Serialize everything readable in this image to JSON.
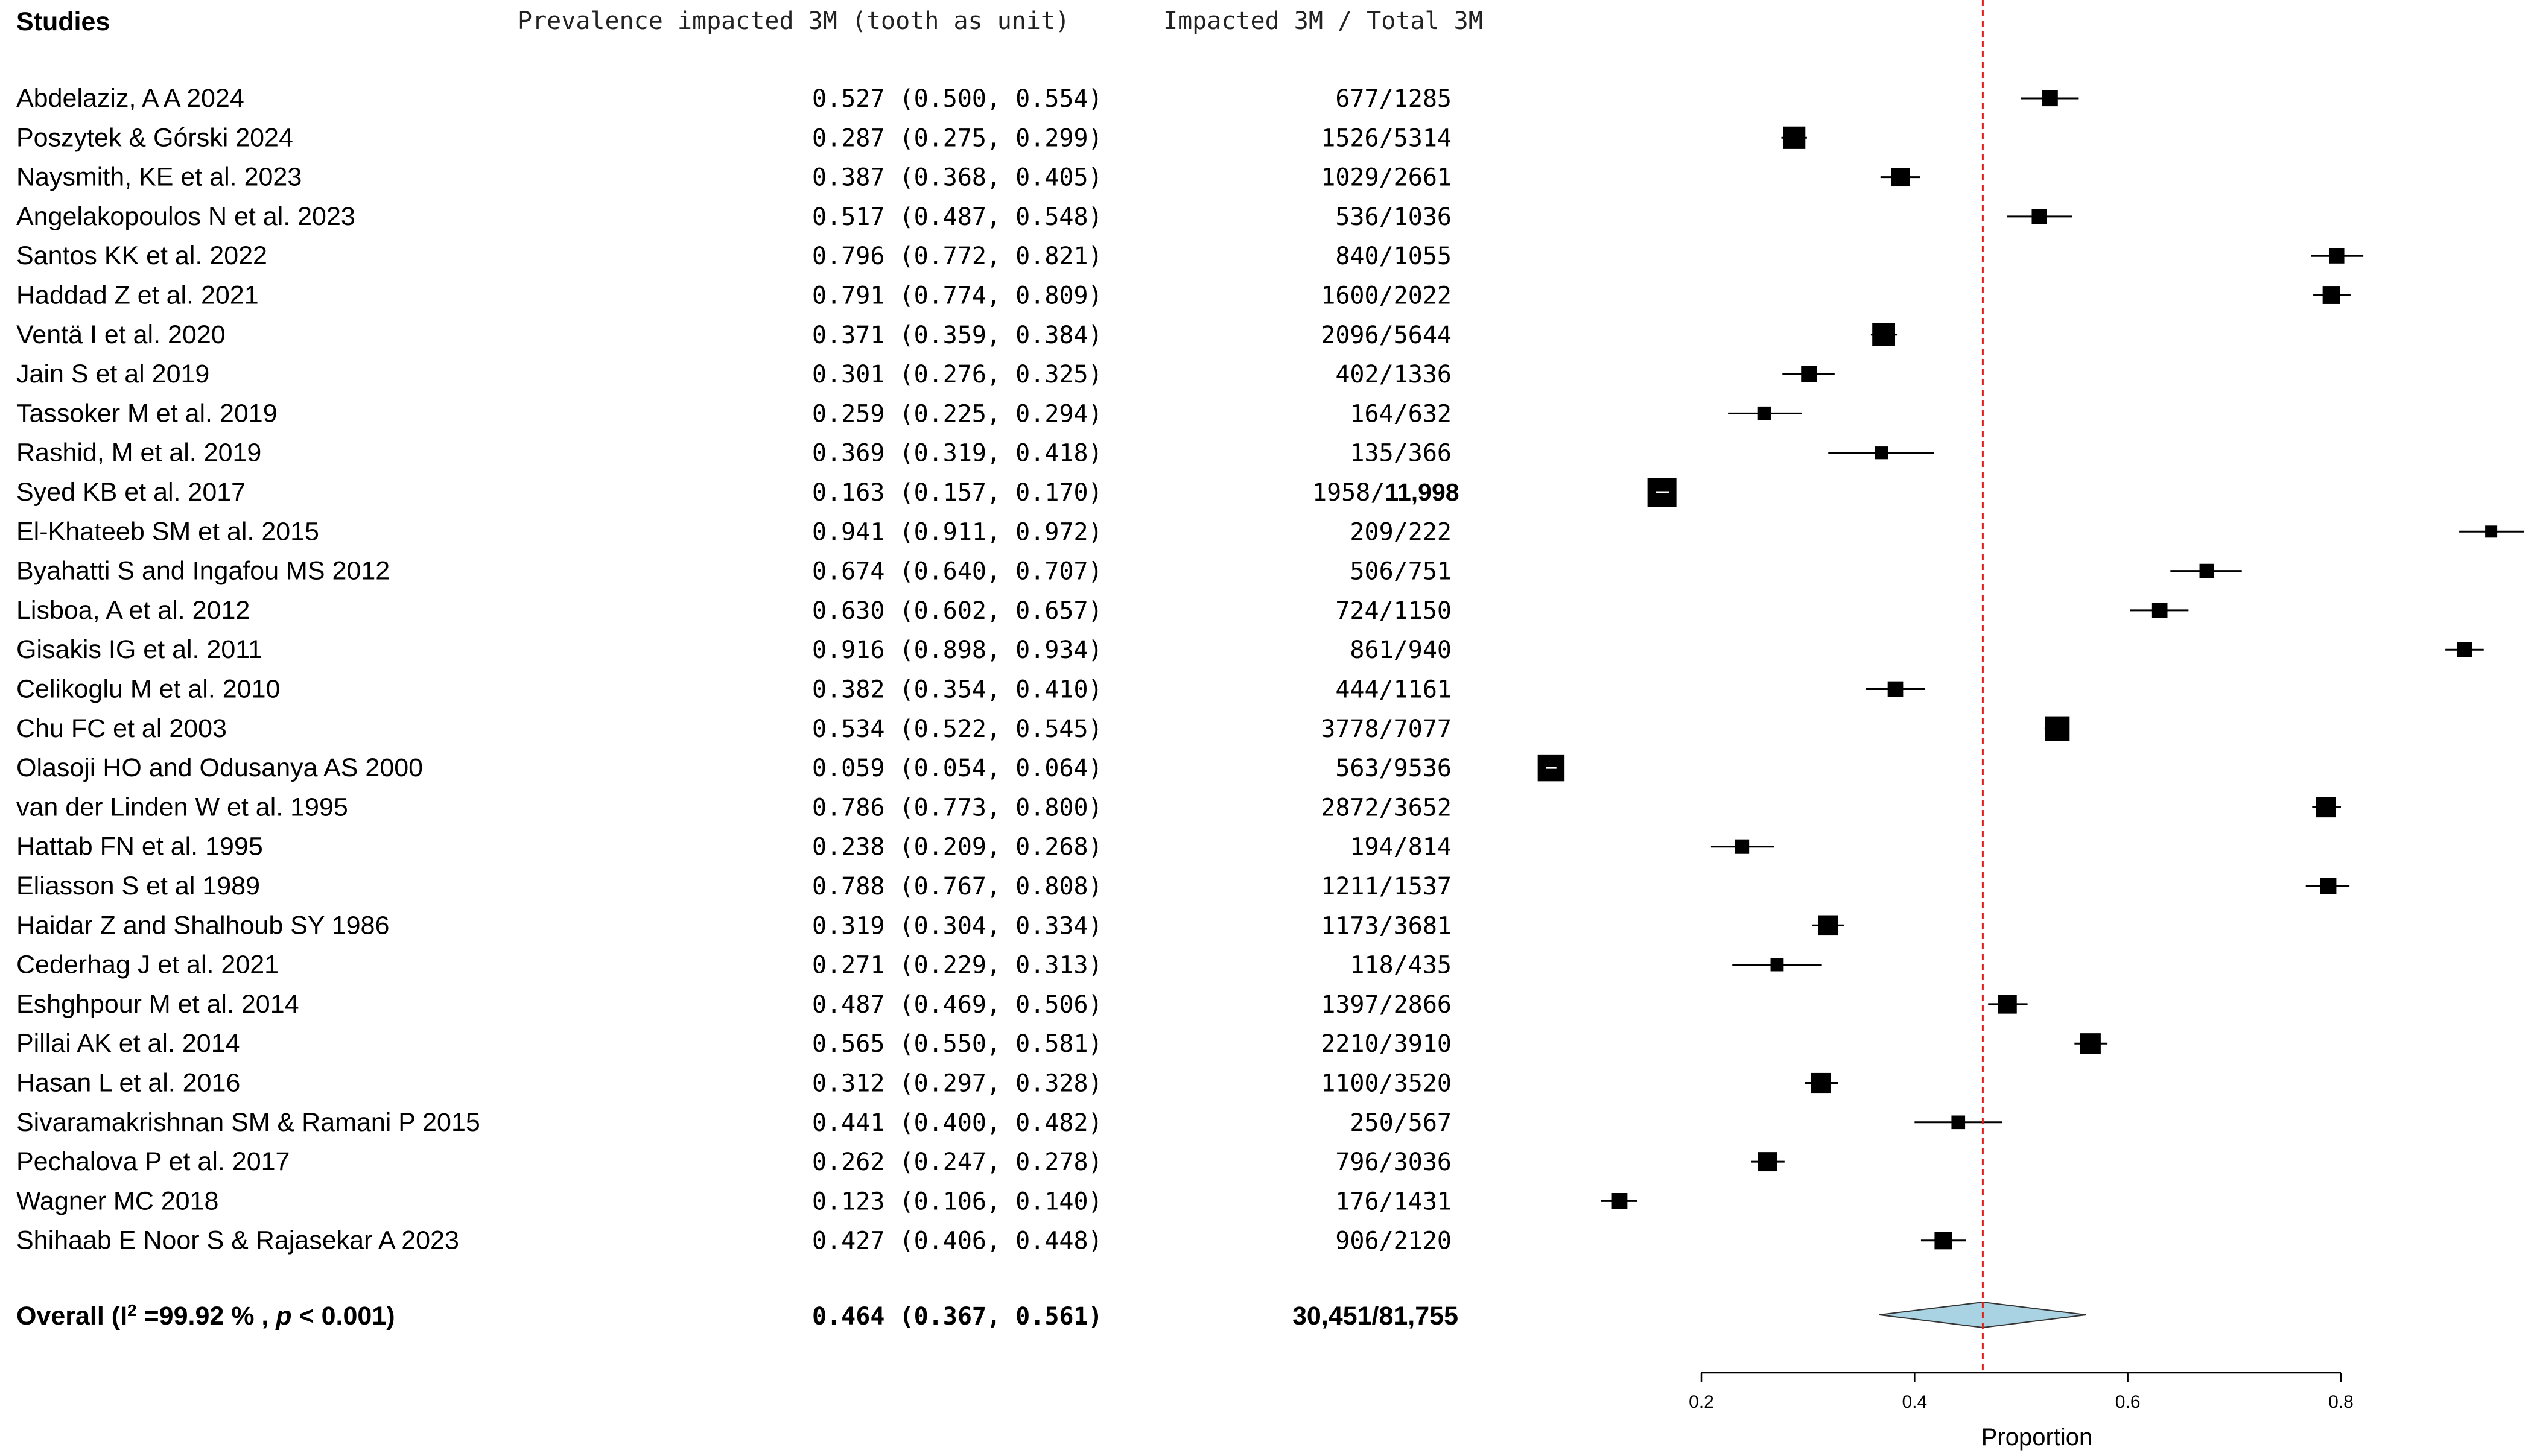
{
  "headers": {
    "studies": "Studies",
    "prevalence": "Prevalence impacted 3M (tooth as unit)",
    "counts": "Impacted 3M / Total 3M"
  },
  "chart_data": {
    "type": "forest",
    "xlabel": "Proportion",
    "xlim": [
      0.2,
      0.8
    ],
    "xticks": [
      0.2,
      0.4,
      0.6,
      0.8
    ],
    "xtick_labels": [
      "0.2",
      "0.4",
      "0.6",
      "0.8"
    ],
    "reference_line": 0.464,
    "reference_line_color": "#e0201b",
    "diamond_color": "#a9d3e3",
    "studies": [
      {
        "name": "Abdelaziz, A A 2024",
        "est": 0.527,
        "lo": 0.5,
        "hi": 0.554,
        "ci_text": "0.527 (0.500, 0.554)",
        "counts": "677/1285",
        "n": 1285
      },
      {
        "name": "Poszytek & Górski 2024",
        "est": 0.287,
        "lo": 0.275,
        "hi": 0.299,
        "ci_text": "0.287 (0.275, 0.299)",
        "counts": "1526/5314",
        "n": 5314
      },
      {
        "name": "Naysmith, KE et al.  2023",
        "est": 0.387,
        "lo": 0.368,
        "hi": 0.405,
        "ci_text": "0.387 (0.368, 0.405)",
        "counts": "1029/2661",
        "n": 2661
      },
      {
        "name": "Angelakopoulos N et al.  2023",
        "est": 0.517,
        "lo": 0.487,
        "hi": 0.548,
        "ci_text": "0.517 (0.487, 0.548)",
        "counts": "536/1036",
        "n": 1036
      },
      {
        "name": "Santos KK  et al.  2022",
        "est": 0.796,
        "lo": 0.772,
        "hi": 0.821,
        "ci_text": "0.796 (0.772, 0.821)",
        "counts": "840/1055",
        "n": 1055
      },
      {
        "name": "Haddad Z et al.  2021",
        "est": 0.791,
        "lo": 0.774,
        "hi": 0.809,
        "ci_text": "0.791 (0.774, 0.809)",
        "counts": "1600/2022",
        "n": 2022
      },
      {
        "name": "Ventä I et al.  2020",
        "est": 0.371,
        "lo": 0.359,
        "hi": 0.384,
        "ci_text": "0.371 (0.359, 0.384)",
        "counts": "2096/5644",
        "n": 5644
      },
      {
        "name": "Jain S  et al 2019",
        "est": 0.301,
        "lo": 0.276,
        "hi": 0.325,
        "ci_text": "0.301 (0.276, 0.325)",
        "counts": "402/1336",
        "n": 1336
      },
      {
        "name": "Tassoker M et al. 2019",
        "est": 0.259,
        "lo": 0.225,
        "hi": 0.294,
        "ci_text": "0.259 (0.225, 0.294)",
        "counts": "164/632",
        "n": 632
      },
      {
        "name": "Rashid, M et al. 2019",
        "est": 0.369,
        "lo": 0.319,
        "hi": 0.418,
        "ci_text": "0.369 (0.319, 0.418)",
        "counts": "135/366",
        "n": 366
      },
      {
        "name": "Syed KB et al. 2017",
        "est": 0.163,
        "lo": 0.157,
        "hi": 0.17,
        "ci_text": "0.163 (0.157, 0.170)",
        "counts": "1958/",
        "counts_bold": "11,998",
        "n": 11998
      },
      {
        "name": "El-Khateeb SM et al.  2015",
        "est": 0.941,
        "lo": 0.911,
        "hi": 0.972,
        "ci_text": "0.941 (0.911, 0.972)",
        "counts": "209/222",
        "n": 222
      },
      {
        "name": "Byahatti S and Ingafou MS 2012",
        "est": 0.674,
        "lo": 0.64,
        "hi": 0.707,
        "ci_text": "0.674 (0.640, 0.707)",
        "counts": "506/751",
        "n": 751
      },
      {
        "name": "Lisboa, A et al. 2012",
        "est": 0.63,
        "lo": 0.602,
        "hi": 0.657,
        "ci_text": "0.630 (0.602, 0.657)",
        "counts": "724/1150",
        "n": 1150
      },
      {
        "name": "Gisakis IG  et al. 2011",
        "est": 0.916,
        "lo": 0.898,
        "hi": 0.934,
        "ci_text": "0.916 (0.898, 0.934)",
        "counts": "861/940",
        "n": 940
      },
      {
        "name": "Celikoglu M et al. 2010",
        "est": 0.382,
        "lo": 0.354,
        "hi": 0.41,
        "ci_text": "0.382 (0.354, 0.410)",
        "counts": "444/1161",
        "n": 1161
      },
      {
        "name": " Chu FC et al 2003",
        "est": 0.534,
        "lo": 0.522,
        "hi": 0.545,
        "ci_text": "0.534 (0.522, 0.545)",
        "counts": "3778/7077",
        "n": 7077
      },
      {
        "name": "Olasoji HO and Odusanya AS 2000",
        "est": 0.059,
        "lo": 0.054,
        "hi": 0.064,
        "ci_text": "0.059 (0.054, 0.064)",
        "counts": "563/9536",
        "n": 9536
      },
      {
        "name": "van der Linden W et al. 1995",
        "est": 0.786,
        "lo": 0.773,
        "hi": 0.8,
        "ci_text": "0.786 (0.773, 0.800)",
        "counts": "2872/3652",
        "n": 3652
      },
      {
        "name": "Hattab FN et al.  1995",
        "est": 0.238,
        "lo": 0.209,
        "hi": 0.268,
        "ci_text": "0.238 (0.209, 0.268)",
        "counts": "194/814",
        "n": 814
      },
      {
        "name": "Eliasson S et al 1989",
        "est": 0.788,
        "lo": 0.767,
        "hi": 0.808,
        "ci_text": "0.788 (0.767, 0.808)",
        "counts": "1211/1537",
        "n": 1537
      },
      {
        "name": "Haidar Z and Shalhoub SY 1986",
        "est": 0.319,
        "lo": 0.304,
        "hi": 0.334,
        "ci_text": "0.319 (0.304, 0.334)",
        "counts": "1173/3681",
        "n": 3681
      },
      {
        "name": "Cederhag J et al.  2021",
        "est": 0.271,
        "lo": 0.229,
        "hi": 0.313,
        "ci_text": "0.271 (0.229, 0.313)",
        "counts": "118/435",
        "n": 435
      },
      {
        "name": "Eshghpour M et al.  2014",
        "est": 0.487,
        "lo": 0.469,
        "hi": 0.506,
        "ci_text": "0.487 (0.469, 0.506)",
        "counts": "1397/2866",
        "n": 2866
      },
      {
        "name": "Pillai AK et al. 2014",
        "est": 0.565,
        "lo": 0.55,
        "hi": 0.581,
        "ci_text": "0.565 (0.550, 0.581)",
        "counts": "2210/3910",
        "n": 3910
      },
      {
        "name": "Hasan L et al. 2016",
        "est": 0.312,
        "lo": 0.297,
        "hi": 0.328,
        "ci_text": "0.312 (0.297, 0.328)",
        "counts": "1100/3520",
        "n": 3520
      },
      {
        "name": "Sivaramakrishnan SM & Ramani P 2015",
        "est": 0.441,
        "lo": 0.4,
        "hi": 0.482,
        "ci_text": "0.441 (0.400, 0.482)",
        "counts": "250/567",
        "n": 567
      },
      {
        "name": "Pechalova P et al.  2017",
        "est": 0.262,
        "lo": 0.247,
        "hi": 0.278,
        "ci_text": "0.262 (0.247, 0.278)",
        "counts": "796/3036",
        "n": 3036
      },
      {
        "name": "Wagner MC 2018",
        "est": 0.123,
        "lo": 0.106,
        "hi": 0.14,
        "ci_text": "0.123 (0.106, 0.140)",
        "counts": "176/1431",
        "n": 1431
      },
      {
        "name": "Shihaab E Noor S & Rajasekar A 2023",
        "est": 0.427,
        "lo": 0.406,
        "hi": 0.448,
        "ci_text": "0.427 (0.406, 0.448)",
        "counts": "906/2120",
        "n": 2120
      }
    ],
    "overall": {
      "label_prefix": "Overall (I",
      "label_sup": "2",
      "label_mid": " =99.92 % , ",
      "label_p": "p",
      "label_suffix": " < 0.001)",
      "est": 0.464,
      "lo": 0.367,
      "hi": 0.561,
      "ci_text": "0.464 (0.367, 0.561)",
      "counts": "30,451/81,755"
    }
  }
}
